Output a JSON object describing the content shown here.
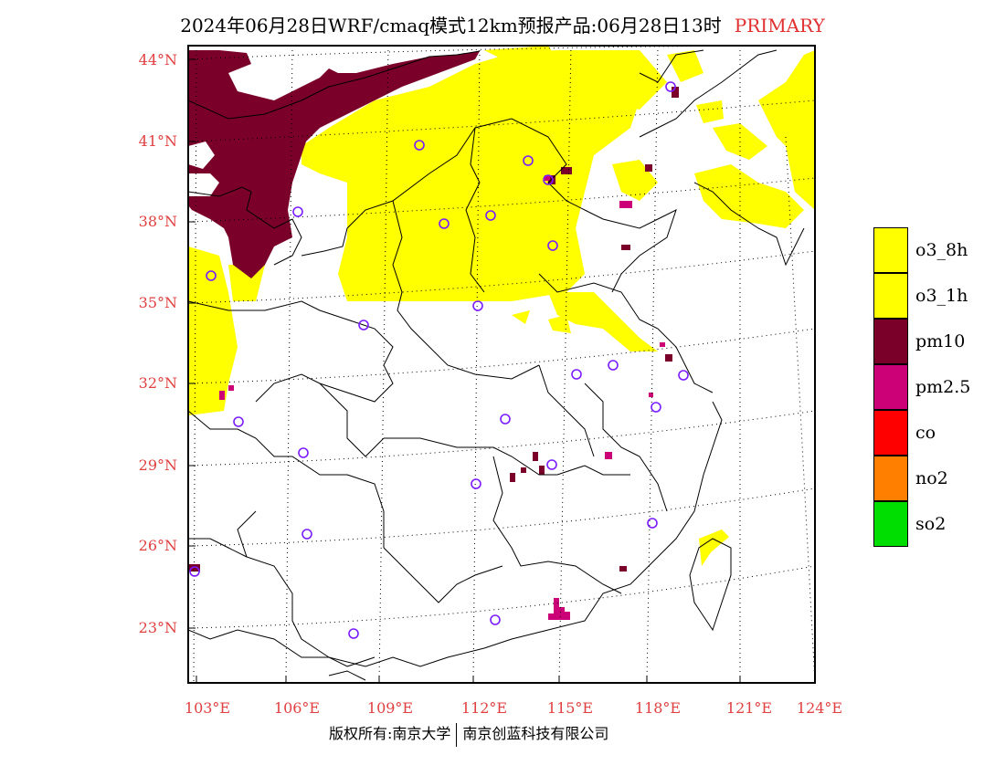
{
  "title": {
    "main": "2024年06月28日WRF/cmaq模式12km预报产品:06月28日13时",
    "tag": "PRIMARY",
    "tag_color": "#e03030"
  },
  "lat_labels": [
    "44°N",
    "41°N",
    "38°N",
    "35°N",
    "32°N",
    "29°N",
    "26°N",
    "23°N"
  ],
  "lon_labels": [
    "103°E",
    "106°E",
    "109°E",
    "112°E",
    "115°E",
    "118°E",
    "121°E",
    "124°E"
  ],
  "legend": [
    {
      "label": "o3_8h",
      "color": "#ffff00"
    },
    {
      "label": "o3_1h",
      "color": "#ffff00"
    },
    {
      "label": "pm10",
      "color": "#7a0029"
    },
    {
      "label": "pm2.5",
      "color": "#cc0077"
    },
    {
      "label": "co",
      "color": "#ff0000"
    },
    {
      "label": "no2",
      "color": "#ff7f00"
    },
    {
      "label": "so2",
      "color": "#00dd00"
    }
  ],
  "footer": {
    "left": "版权所有:南京大学",
    "right": "南京创蓝科技有限公司"
  },
  "colors": {
    "o3": "#ffff00",
    "pm10": "#7a0029",
    "pm25": "#cc0077",
    "station": "#7a1cff",
    "grid_label": "#e04040"
  }
}
